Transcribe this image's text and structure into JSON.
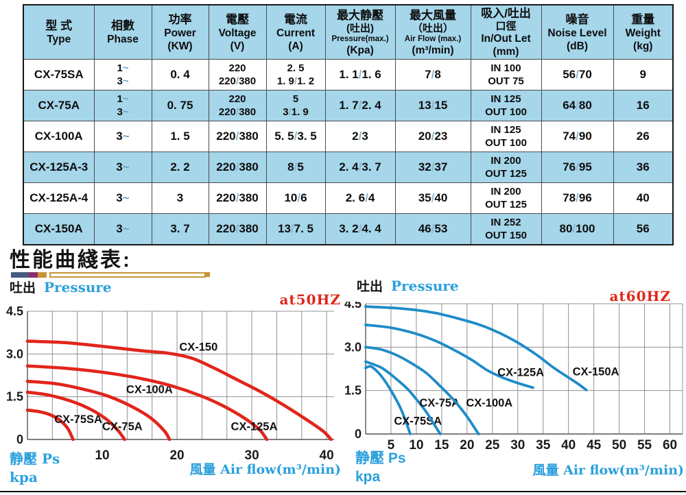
{
  "table": {
    "headers": [
      {
        "cn": "型 式",
        "en": "Type"
      },
      {
        "cn": "相數",
        "en": "Phase"
      },
      {
        "cn": "功率",
        "en": "Power",
        "unit": "(KW)"
      },
      {
        "cn": "電壓",
        "en": "Voltage",
        "unit": "(V)"
      },
      {
        "cn": "電流",
        "en": "Current",
        "unit": "(A)"
      },
      {
        "cn": "最大静壓",
        "cn2": "(吐出)",
        "en": "Pressure(max.)",
        "en_small": true,
        "unit": "(Kpa)"
      },
      {
        "cn": "最大風量",
        "cn2": "（吐出）",
        "en": "Air Flow (max.)",
        "en_small": true,
        "unit": "(m³/min)"
      },
      {
        "cn": "吸入/吐出",
        "cn2": "口徑",
        "en": "In/Out Let",
        "unit": "(mm)"
      },
      {
        "cn": "噪音",
        "en": "Noise Level",
        "unit": "(dB)"
      },
      {
        "cn": "重量",
        "en": "Weight",
        "unit": "(kg)"
      }
    ],
    "rows": [
      {
        "type": "CX-75SA",
        "phase": [
          "1~",
          "3~"
        ],
        "power": "0. 4",
        "voltage": [
          "220",
          "220/380"
        ],
        "current": [
          "2. 5",
          "1. 9/1. 2"
        ],
        "pressure": "1. 1/1. 6",
        "airflow": "7/8",
        "inout": [
          "IN 100",
          "OUT 75"
        ],
        "noise": "56/70",
        "weight": "9",
        "shaded": false
      },
      {
        "type": "CX-75A",
        "phase": [
          "1~",
          "3~"
        ],
        "power": "0. 75",
        "voltage": [
          "220",
          "220/380"
        ],
        "current": [
          "5",
          "3/1. 9"
        ],
        "pressure": "1. 7/2. 4",
        "airflow": "13/15",
        "inout": [
          "IN 125",
          "OUT 100"
        ],
        "noise": "64/80",
        "weight": "16",
        "shaded": true
      },
      {
        "type": "CX-100A",
        "phase": "3~",
        "power": "1. 5",
        "voltage": "220/380",
        "current": "5. 5/3. 5",
        "pressure": "2/3",
        "airflow": "20/23",
        "inout": [
          "IN 125",
          "OUT 100"
        ],
        "noise": "74/90",
        "weight": "26",
        "shaded": false
      },
      {
        "type": "CX-125A-3",
        "phase": "3~",
        "power": "2. 2",
        "voltage": "220/380",
        "current": "8/5",
        "pressure": "2. 4/3. 7",
        "airflow": "32/37",
        "inout": [
          "IN 200",
          "OUT 125"
        ],
        "noise": "76/95",
        "weight": "36",
        "shaded": true
      },
      {
        "type": "CX-125A-4",
        "phase": "3~",
        "power": "3",
        "voltage": "220/380",
        "current": "10/6",
        "pressure": "2. 6/4",
        "airflow": "35/40",
        "inout": [
          "IN 200",
          "OUT 125"
        ],
        "noise": "78/96",
        "weight": "40",
        "shaded": false
      },
      {
        "type": "CX-150A",
        "phase": "3~",
        "power": "3. 7",
        "voltage": "220/380",
        "current": "13/7. 5",
        "pressure": "3. 2/4. 4",
        "airflow": "46/53",
        "inout": [
          "IN 252",
          "OUT 150"
        ],
        "noise": "80/100",
        "weight": "56",
        "shaded": true
      }
    ]
  },
  "section": {
    "title": "性能曲綫表:"
  },
  "colors": {
    "table_blue": "#a5d6ea",
    "curve_red": "#e1251b",
    "curve_blue": "#1e8bc8",
    "label_blue": "#2aa0dc",
    "grid_gray": "#909090"
  },
  "chart_data": [
    {
      "type": "line",
      "freq_label": "at50HZ",
      "pressure_label_cn": "吐出",
      "pressure_label_en": "Pressure",
      "x_axis_label": "風量 Air flow(m³/min)",
      "y_corner_label_line1": "静壓 Ps",
      "y_corner_label_line2": "kpa",
      "xlim": [
        0,
        41
      ],
      "ylim": [
        0,
        4.5
      ],
      "xticks": [
        10,
        20,
        30,
        40
      ],
      "yticks": [
        [
          0,
          "0"
        ],
        [
          1.5,
          "1.5"
        ],
        [
          3,
          "3.0"
        ],
        [
          4.5,
          "4.5"
        ]
      ],
      "grid_step_x": 3.3333,
      "grid_max_x": 40,
      "line_color": "#e1251b",
      "series": [
        {
          "name": "CX-75SA",
          "points": [
            [
              0,
              1.03
            ],
            [
              1.5,
              0.98
            ],
            [
              3,
              0.87
            ],
            [
              4.3,
              0.68
            ],
            [
              5.4,
              0.38
            ],
            [
              6.1,
              0
            ]
          ],
          "label_xy": [
            3.6,
            0.58
          ]
        },
        {
          "name": "CX-75A",
          "points": [
            [
              0,
              1.66
            ],
            [
              3,
              1.55
            ],
            [
              6,
              1.33
            ],
            [
              8.5,
              1.05
            ],
            [
              10.5,
              0.72
            ],
            [
              12,
              0.35
            ],
            [
              13,
              0
            ]
          ],
          "label_xy": [
            10,
            0.33
          ]
        },
        {
          "name": "CX-100A",
          "points": [
            [
              0,
              2.04
            ],
            [
              4,
              1.95
            ],
            [
              8,
              1.73
            ],
            [
              11,
              1.5
            ],
            [
              14,
              1.15
            ],
            [
              16.5,
              0.75
            ],
            [
              18.3,
              0.3
            ],
            [
              19,
              0
            ]
          ],
          "label_xy": [
            13.2,
            1.62
          ]
        },
        {
          "name": "CX-125A",
          "points": [
            [
              0,
              2.58
            ],
            [
              5,
              2.5
            ],
            [
              10,
              2.36
            ],
            [
              15,
              2.15
            ],
            [
              19,
              1.9
            ],
            [
              23,
              1.55
            ],
            [
              26,
              1.2
            ],
            [
              29,
              0.75
            ],
            [
              31,
              0.35
            ],
            [
              32,
              0
            ]
          ],
          "label_xy": [
            27.2,
            0.33
          ]
        },
        {
          "name": "CX-150",
          "points": [
            [
              0,
              3.45
            ],
            [
              5,
              3.4
            ],
            [
              10,
              3.27
            ],
            [
              15,
              3.12
            ],
            [
              19,
              3.02
            ],
            [
              22,
              2.85
            ],
            [
              25,
              2.5
            ],
            [
              28,
              2.1
            ],
            [
              31,
              1.7
            ],
            [
              34,
              1.25
            ],
            [
              37,
              0.75
            ],
            [
              39.5,
              0.3
            ],
            [
              40.6,
              0
            ]
          ],
          "label_xy": [
            20.3,
            3.12
          ]
        }
      ]
    },
    {
      "type": "line",
      "freq_label": "at60HZ",
      "pressure_label_cn": "吐出",
      "pressure_label_en": "Pressure",
      "x_axis_label": "風量 Air flow(m³/min)",
      "y_corner_label_line1": "静壓 Ps",
      "y_corner_label_line2": "kpa",
      "xlim": [
        0,
        62.5
      ],
      "ylim": [
        0,
        4.5
      ],
      "xticks": [
        5,
        10,
        15,
        20,
        25,
        30,
        35,
        40,
        45,
        50,
        55,
        60
      ],
      "yticks": [
        [
          0,
          "0"
        ],
        [
          1.5,
          "1.5"
        ],
        [
          3,
          "3.0"
        ],
        [
          4.5,
          "4.5"
        ]
      ],
      "grid_step_x": 5,
      "grid_max_x": 60,
      "line_color": "#1e8bc8",
      "series": [
        {
          "name": "CX-75SA",
          "points": [
            [
              0,
              2.28
            ],
            [
              1,
              2.33
            ],
            [
              2.5,
              2.12
            ],
            [
              4,
              1.78
            ],
            [
              5.5,
              1.35
            ],
            [
              7,
              0.85
            ],
            [
              8.2,
              0.3
            ],
            [
              8.8,
              0
            ]
          ],
          "label_xy": [
            5.6,
            0.32
          ]
        },
        {
          "name": "CX-75A",
          "points": [
            [
              0,
              2.5
            ],
            [
              3,
              2.3
            ],
            [
              5,
              2.05
            ],
            [
              8,
              1.6
            ],
            [
              10,
              1.2
            ],
            [
              12,
              0.75
            ],
            [
              13.8,
              0.25
            ],
            [
              14.7,
              0
            ]
          ],
          "label_xy": [
            10.6,
            0.95
          ]
        },
        {
          "name": "CX-100A",
          "points": [
            [
              0,
              3.0
            ],
            [
              3,
              2.92
            ],
            [
              6,
              2.73
            ],
            [
              9,
              2.45
            ],
            [
              12,
              2.1
            ],
            [
              15,
              1.6
            ],
            [
              17.5,
              1.15
            ],
            [
              20,
              0.6
            ],
            [
              21.7,
              0.15
            ],
            [
              22.3,
              0
            ]
          ],
          "label_xy": [
            19.8,
            0.95
          ]
        },
        {
          "name": "CX-125A",
          "points": [
            [
              0,
              3.77
            ],
            [
              5,
              3.67
            ],
            [
              10,
              3.46
            ],
            [
              14,
              3.2
            ],
            [
              18,
              2.85
            ],
            [
              21,
              2.55
            ],
            [
              24,
              2.2
            ],
            [
              27,
              1.95
            ],
            [
              30,
              1.76
            ],
            [
              33,
              1.6
            ]
          ],
          "label_xy": [
            26,
            2.0
          ]
        },
        {
          "name": "CX-150A",
          "points": [
            [
              0,
              4.4
            ],
            [
              5,
              4.36
            ],
            [
              10,
              4.28
            ],
            [
              14,
              4.17
            ],
            [
              18,
              4.0
            ],
            [
              22,
              3.8
            ],
            [
              25,
              3.6
            ],
            [
              28,
              3.35
            ],
            [
              31,
              3.05
            ],
            [
              34,
              2.7
            ],
            [
              37,
              2.3
            ],
            [
              40,
              1.95
            ],
            [
              42,
              1.72
            ],
            [
              43.5,
              1.52
            ]
          ],
          "label_xy": [
            40.8,
            2.02
          ]
        }
      ]
    }
  ]
}
